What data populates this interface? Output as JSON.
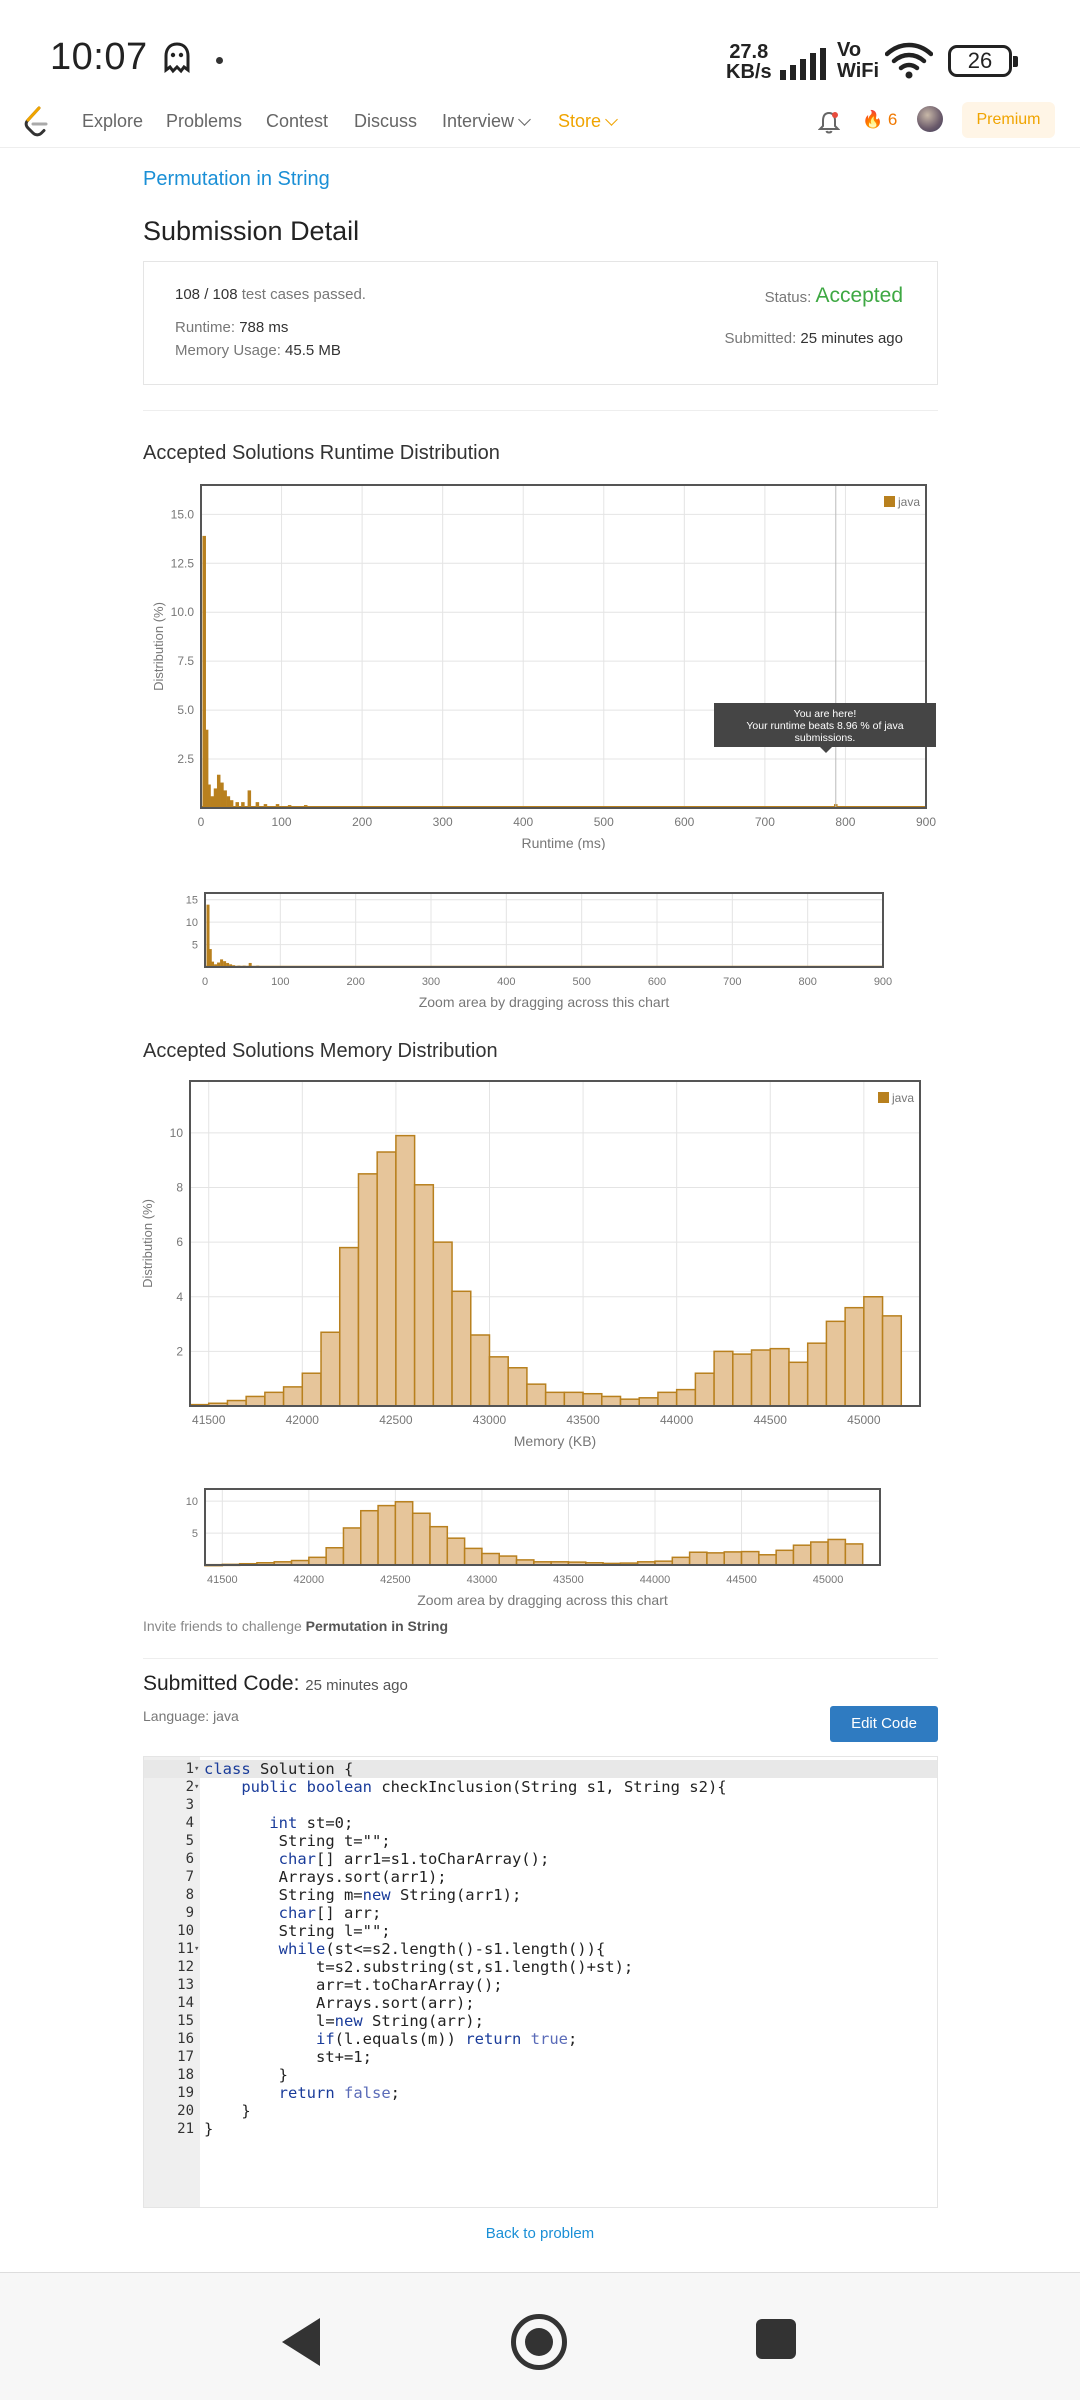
{
  "status_bar": {
    "time": "10:07",
    "net_speed": "27.8",
    "net_unit": "KB/s",
    "vo": "Vo",
    "wifi": "WiFi",
    "battery": "26",
    "icons": [
      "ghost-icon",
      "signal-icon",
      "wifi-icon",
      "battery-icon"
    ]
  },
  "nav": {
    "items": [
      "Explore",
      "Problems",
      "Contest",
      "Discuss",
      "Interview",
      "Store"
    ],
    "streak": "6",
    "premium": "Premium"
  },
  "problem_link": "Permutation in String",
  "page_title": "Submission Detail",
  "detail": {
    "tests_passed": "108 / 108",
    "tests_label": "test cases passed.",
    "status_label": "Status:",
    "status_value": "Accepted",
    "runtime_label": "Runtime:",
    "runtime_value": "788 ms",
    "memory_label": "Memory Usage:",
    "memory_value": "45.5 MB",
    "submitted_label": "Submitted:",
    "submitted_value": "25 minutes ago"
  },
  "runtime_section_title": "Accepted Solutions Runtime Distribution",
  "memory_section_title": "Accepted Solutions Memory Distribution",
  "tooltip": {
    "line1": "You are here!",
    "line2": "Your runtime beats 8.96 % of java",
    "line3": "submissions."
  },
  "zoom_caption": "Zoom area by dragging across this chart",
  "chart_data": [
    {
      "type": "bar",
      "id": "runtime-main",
      "xlabel": "Runtime (ms)",
      "ylabel": "Distribution (%)",
      "xlim": [
        0,
        900
      ],
      "ylim": [
        0,
        16.5
      ],
      "xticks": [
        0,
        100,
        200,
        300,
        400,
        500,
        600,
        700,
        800,
        900
      ],
      "yticks": [
        "2.5",
        "5.0",
        "7.5",
        "10.0",
        "12.5",
        "15.0"
      ],
      "legend": "java",
      "legend_position": "top-right",
      "highlight_x": 788,
      "x": [
        4,
        7,
        10,
        14,
        18,
        22,
        26,
        30,
        34,
        38,
        45,
        52,
        60,
        70,
        80,
        95,
        110,
        130,
        150,
        180,
        210,
        250,
        300,
        350,
        400,
        450,
        500,
        550,
        600,
        650,
        700,
        750,
        788,
        820,
        860,
        890
      ],
      "values": [
        13.9,
        4.0,
        1.2,
        0.6,
        1.0,
        1.7,
        1.3,
        0.9,
        0.6,
        0.4,
        0.3,
        0.3,
        0.9,
        0.3,
        0.2,
        0.2,
        0.15,
        0.15,
        0.1,
        0.1,
        0.1,
        0.1,
        0.08,
        0.08,
        0.08,
        0.06,
        0.06,
        0.06,
        0.06,
        0.06,
        0.08,
        0.1,
        0.2,
        0.1,
        0.06,
        0.05
      ]
    },
    {
      "type": "bar",
      "id": "runtime-zoom",
      "xlabel": "Zoom area by dragging across this chart",
      "xlim": [
        0,
        900
      ],
      "ylim": [
        0,
        16.5
      ],
      "xticks": [
        0,
        100,
        200,
        300,
        400,
        500,
        600,
        700,
        800,
        900
      ],
      "yticks": [
        "5",
        "10",
        "15"
      ]
    },
    {
      "type": "bar",
      "id": "memory-main",
      "xlabel": "Memory (KB)",
      "ylabel": "Distribution (%)",
      "xlim": [
        41400,
        45300
      ],
      "ylim": [
        0,
        11.9
      ],
      "xticks": [
        41500,
        42000,
        42500,
        43000,
        43500,
        44000,
        44500,
        45000
      ],
      "yticks": [
        "2",
        "4",
        "6",
        "8",
        "10"
      ],
      "legend": "java",
      "legend_position": "top-right",
      "bin_start": 41400,
      "bin_width": 100,
      "values": [
        0.05,
        0.1,
        0.2,
        0.35,
        0.5,
        0.7,
        1.2,
        2.7,
        5.8,
        8.5,
        9.3,
        9.9,
        8.1,
        6.0,
        4.2,
        2.6,
        1.8,
        1.4,
        0.8,
        0.5,
        0.5,
        0.45,
        0.35,
        0.25,
        0.3,
        0.5,
        0.6,
        1.2,
        2.0,
        1.9,
        2.05,
        2.1,
        1.6,
        2.3,
        3.1,
        3.6,
        4.0,
        3.3
      ]
    },
    {
      "type": "bar",
      "id": "memory-zoom",
      "xlabel": "Zoom area by dragging across this chart",
      "xlim": [
        41400,
        45300
      ],
      "ylim": [
        0,
        11.9
      ],
      "xticks": [
        41500,
        42000,
        42500,
        43000,
        43500,
        44000,
        44500,
        45000
      ],
      "yticks": [
        "5",
        "10"
      ]
    }
  ],
  "invite": {
    "text": "Invite friends to challenge",
    "problem": "Permutation in String"
  },
  "code": {
    "title": "Submitted Code:",
    "time": "25 minutes ago",
    "language": "Language: java",
    "edit_button": "Edit Code",
    "lines": [
      "class Solution {",
      "    public boolean checkInclusion(String s1, String s2){",
      "",
      "       int st=0;",
      "        String t=\"\";",
      "        char[] arr1=s1.toCharArray();",
      "        Arrays.sort(arr1);",
      "        String m=new String(arr1);",
      "        char[] arr;",
      "        String l=\"\";",
      "        while(st<=s2.length()-s1.length()){",
      "            t=s2.substring(st,s1.length()+st);",
      "            arr=t.toCharArray();",
      "            Arrays.sort(arr);",
      "            l=new String(arr);",
      "            if(l.equals(m)) return true;",
      "            st+=1;",
      "        }",
      "        return false;",
      "    }",
      "}"
    ],
    "fold_lines": [
      1,
      2,
      11
    ]
  },
  "back_link": "Back to problem",
  "colors": {
    "bar_fill_runtime": "#b8801e",
    "bar_fill_memory": "#e6c59a",
    "bar_stroke_memory": "#b8801e",
    "accepted": "#3ea843",
    "link": "#1a8fd6",
    "premium": "#f0a400"
  }
}
